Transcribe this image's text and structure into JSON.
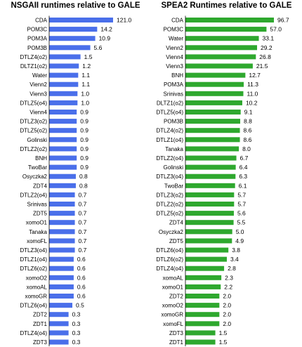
{
  "chart_data": [
    {
      "type": "bar",
      "orientation": "horizontal",
      "title": "NSGAII runtimes relative to GALE",
      "color": "#4a6fea",
      "categories": [
        "CDA",
        "POM3C",
        "POM3A",
        "POM3B",
        "DTLZ4(o2)",
        "DLTZ1(o2)",
        "Water",
        "Vienn2",
        "Vienn3",
        "DTLZ5(o4)",
        "Vienn4",
        "DTLZ3(o2)",
        "DTLZ5(o2)",
        "Golinski",
        "DTLZ2(o2)",
        "BNH",
        "TwoBar",
        "Osyczka2",
        "ZDT4",
        "DTLZ2(o4)",
        "Srinivas",
        "ZDT5",
        "xomoO1",
        "Tanaka",
        "xomoFL",
        "DTLZ3(o4)",
        "DTLZ1(o4)",
        "DTLZ6(o2)",
        "xomoO2",
        "xomoAL",
        "xomoGR",
        "DTLZ6(o4)",
        "ZDT2",
        "ZDT1",
        "DTLZ4(o4)",
        "ZDT3"
      ],
      "values": [
        121.0,
        14.2,
        10.9,
        5.6,
        1.5,
        1.2,
        1.1,
        1.1,
        1.0,
        1.0,
        0.9,
        0.9,
        0.9,
        0.9,
        0.9,
        0.9,
        0.9,
        0.8,
        0.8,
        0.7,
        0.7,
        0.7,
        0.7,
        0.7,
        0.7,
        0.7,
        0.6,
        0.6,
        0.6,
        0.6,
        0.6,
        0.5,
        0.3,
        0.3,
        0.3,
        0.3
      ],
      "labels": [
        "121.0",
        "14.2",
        "10.9",
        "5.6",
        "1.5",
        "1.2",
        "1.1",
        "1.1",
        "1.0",
        "1.0",
        "0.9",
        "0.9",
        "0.9",
        "0.9",
        "0.9",
        "0.9",
        "0.9",
        "0.8",
        "0.8",
        "0.7",
        "0.7",
        "0.7",
        "0.7",
        "0.7",
        "0.7",
        "0.7",
        "0.6",
        "0.6",
        "0.6",
        "0.6",
        "0.6",
        "0.5",
        "0.3",
        "0.3",
        "0.3",
        "0.3"
      ]
    },
    {
      "type": "bar",
      "orientation": "horizontal",
      "title": "SPEA2 Runtimes relative to GALE",
      "color": "#2ea82e",
      "categories": [
        "CDA",
        "POM3C",
        "Water",
        "Vienn2",
        "Vienn4",
        "Vienn3",
        "BNH",
        "POM3A",
        "Srinivas",
        "DLTZ1(o2)",
        "DTLZ5(o4)",
        "POM3B",
        "DTLZ4(o2)",
        "DTLZ1(o4)",
        "Tanaka",
        "DTLZ2(o4)",
        "Golinski",
        "DTLZ3(o4)",
        "TwoBar",
        "DTLZ3(o2)",
        "DTLZ2(o2)",
        "DTLZ5(o2)",
        "ZDT4",
        "Osyczka2",
        "ZDT5",
        "DTLZ6(o4)",
        "DTLZ6(o2)",
        "DTLZ4(o4)",
        "xomoAL",
        "xomoO1",
        "ZDT2",
        "xomoO2",
        "xomoGR",
        "xomoFL",
        "ZDT3",
        "ZDT1"
      ],
      "values": [
        96.7,
        57.0,
        33.1,
        29.2,
        26.8,
        21.5,
        12.7,
        11.3,
        11.0,
        10.2,
        9.1,
        8.8,
        8.6,
        8.6,
        8.0,
        6.7,
        6.4,
        6.3,
        6.1,
        5.7,
        5.7,
        5.6,
        5.5,
        5.0,
        4.9,
        3.8,
        3.4,
        2.8,
        2.3,
        2.2,
        2.0,
        2.0,
        2.0,
        2.0,
        1.5,
        1.5
      ],
      "labels": [
        "96.7",
        "57.0",
        "33.1",
        "29.2",
        "26.8",
        "21.5",
        "12.7",
        "11.3",
        "11.0",
        "10.2",
        "9.1",
        "8.8",
        "8.6",
        "8.6",
        "8.0",
        "6.7",
        "6.4",
        "6.3",
        "6.1",
        "5.7",
        "5.7",
        "5.6",
        "5.5",
        "5.0",
        "4.9",
        "3.8",
        "3.4",
        "2.8",
        "2.3",
        "2.2",
        "2.0",
        "2.0",
        "2.0",
        "2.0",
        "1.5",
        "1.5"
      ]
    }
  ]
}
